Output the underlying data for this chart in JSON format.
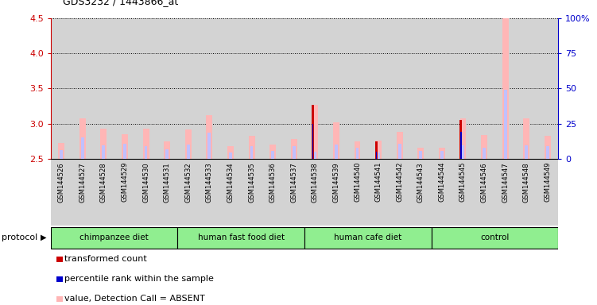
{
  "title": "GDS3232 / 1443866_at",
  "samples": [
    "GSM144526",
    "GSM144527",
    "GSM144528",
    "GSM144529",
    "GSM144530",
    "GSM144531",
    "GSM144532",
    "GSM144533",
    "GSM144534",
    "GSM144535",
    "GSM144536",
    "GSM144537",
    "GSM144538",
    "GSM144539",
    "GSM144540",
    "GSM144541",
    "GSM144542",
    "GSM144543",
    "GSM144544",
    "GSM144545",
    "GSM144546",
    "GSM144547",
    "GSM144548",
    "GSM144549"
  ],
  "value_bars": [
    2.72,
    3.07,
    2.93,
    2.85,
    2.93,
    2.75,
    2.92,
    3.12,
    2.68,
    2.83,
    2.7,
    2.78,
    3.27,
    3.02,
    2.75,
    2.76,
    2.88,
    2.66,
    2.66,
    3.07,
    2.84,
    4.5,
    3.07,
    2.82
  ],
  "rank_bars": [
    2.62,
    2.8,
    2.69,
    2.71,
    2.68,
    2.63,
    2.7,
    2.87,
    2.59,
    2.68,
    2.61,
    2.68,
    2.6,
    2.7,
    2.65,
    2.59,
    2.71,
    2.61,
    2.61,
    2.69,
    2.65,
    3.48,
    2.69,
    2.68
  ],
  "transformed_count": [
    null,
    null,
    null,
    null,
    null,
    null,
    null,
    null,
    null,
    null,
    null,
    null,
    3.27,
    null,
    null,
    2.74,
    null,
    null,
    null,
    3.05,
    null,
    null,
    null,
    null
  ],
  "percentile_rank": [
    null,
    null,
    null,
    null,
    null,
    null,
    null,
    null,
    null,
    null,
    null,
    null,
    3.0,
    null,
    null,
    2.6,
    null,
    null,
    null,
    2.88,
    null,
    null,
    null,
    null
  ],
  "groups": [
    {
      "label": "chimpanzee diet",
      "start": 0,
      "end": 6
    },
    {
      "label": "human fast food diet",
      "start": 6,
      "end": 12
    },
    {
      "label": "human cafe diet",
      "start": 12,
      "end": 18
    },
    {
      "label": "control",
      "start": 18,
      "end": 24
    }
  ],
  "ylim_left": [
    2.5,
    4.5
  ],
  "ylim_right": [
    0,
    100
  ],
  "yticks_left": [
    2.5,
    3.0,
    3.5,
    4.0,
    4.5
  ],
  "yticks_right": [
    0,
    25,
    50,
    75,
    100
  ],
  "value_bar_color": "#FFB6B6",
  "rank_bar_color": "#C0C0FF",
  "transformed_count_color": "#CC0000",
  "percentile_rank_color": "#0000CC",
  "left_axis_color": "#CC0000",
  "right_axis_color": "#0000CC",
  "col_bg_color": "#D3D3D3",
  "group_color": "#90EE90"
}
